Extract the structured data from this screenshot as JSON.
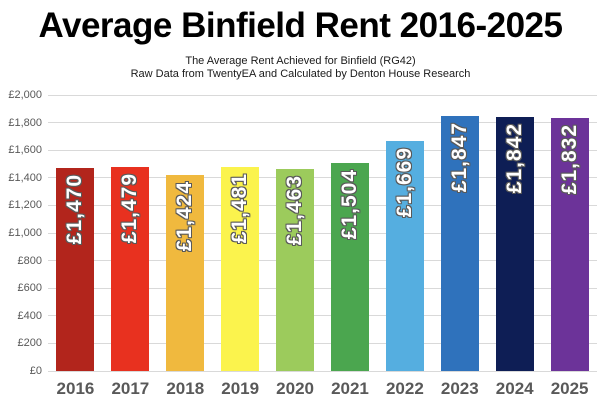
{
  "header": {
    "title": "Average Binfield Rent 2016-2025",
    "subtitle_line1": "The Average Rent Achieved for Binfield (RG42)",
    "subtitle_line2": "Raw Data from TwentyEA and Calculated by Denton House Research"
  },
  "chart_data": {
    "type": "bar",
    "title": "Average Binfield Rent 2016-2025",
    "categories": [
      "2016",
      "2017",
      "2018",
      "2019",
      "2020",
      "2021",
      "2022",
      "2023",
      "2024",
      "2025"
    ],
    "values": [
      1470,
      1479,
      1424,
      1481,
      1463,
      1504,
      1669,
      1847,
      1842,
      1832
    ],
    "bar_labels": [
      "£1,470",
      "£1,479",
      "£1,424",
      "£1,481",
      "£1,463",
      "£1,504",
      "£1,669",
      "£1,847",
      "£1,842",
      "£1,832"
    ],
    "bar_colors": [
      "#B2251C",
      "#E8311F",
      "#F0B93E",
      "#FBF34D",
      "#9CCB5C",
      "#4BA64F",
      "#55AEE0",
      "#2F72BC",
      "#0E1E55",
      "#6C3399"
    ],
    "xlabel": "",
    "ylabel": "",
    "ylim": [
      0,
      2000
    ],
    "y_tick_step": 200,
    "y_tick_labels": [
      "£0",
      "£200",
      "£400",
      "£600",
      "£800",
      "£1,000",
      "£1,200",
      "£1,400",
      "£1,600",
      "£1,800",
      "£2,000"
    ],
    "grid": true,
    "legend_position": "none",
    "colors": {
      "background": "#FFFFFF",
      "gridline": "#D9D9D9",
      "axis_text": "#595959",
      "title_text": "#000000",
      "bar_label_text": "#FFFFFF",
      "bar_label_outline": "#595959"
    }
  }
}
